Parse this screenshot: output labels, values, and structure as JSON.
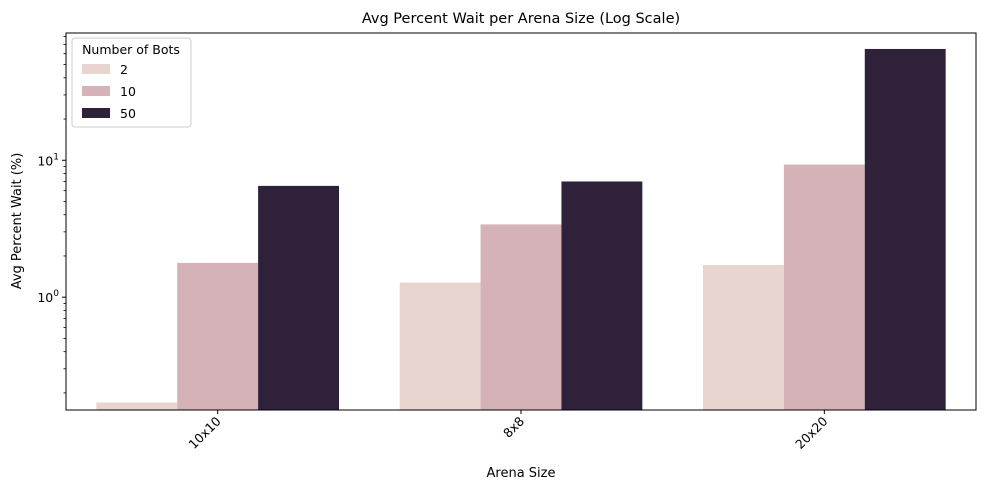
{
  "chart_data": {
    "type": "bar",
    "title": "Avg Percent Wait per Arena Size (Log Scale)",
    "xlabel": "Arena Size",
    "ylabel": "Avg Percent Wait (%)",
    "yscale": "log",
    "ylim": [
      0.15,
      85
    ],
    "categories": [
      "10x10",
      "8x8",
      "20x20"
    ],
    "yticks": [
      {
        "value": 1,
        "base": "10",
        "exp": "0"
      },
      {
        "value": 10,
        "base": "10",
        "exp": "1"
      }
    ],
    "legend": {
      "title": "Number of Bots",
      "placement": "top-left"
    },
    "grid": false,
    "series": [
      {
        "name": "2",
        "color": "#e8d5d0",
        "values": [
          0.17,
          1.28,
          1.72
        ]
      },
      {
        "name": "10",
        "color": "#d5b2b7",
        "values": [
          1.78,
          3.4,
          9.3
        ]
      },
      {
        "name": "50",
        "color": "#2e2139",
        "values": [
          6.5,
          7.0,
          65
        ]
      }
    ]
  }
}
